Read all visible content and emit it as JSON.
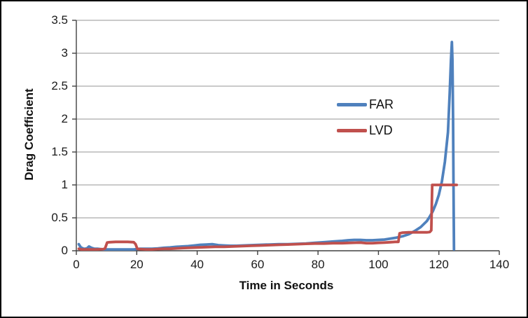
{
  "figure": {
    "background": "#ffffff",
    "border_color": "#000000"
  },
  "chart_data": {
    "type": "line",
    "title": "",
    "xlabel": "Time in Seconds",
    "ylabel": "Drag Coefficient",
    "xlim": [
      0,
      140
    ],
    "ylim": [
      0,
      3.5
    ],
    "xticks": [
      0,
      20,
      40,
      60,
      80,
      100,
      120,
      140
    ],
    "xtick_labels": [
      "0",
      "20",
      "40",
      "60",
      "80",
      "100",
      "120",
      "140"
    ],
    "yticks": [
      0,
      0.5,
      1,
      1.5,
      2,
      2.5,
      3,
      3.5
    ],
    "ytick_labels": [
      "0",
      "0.5",
      "1",
      "1.5",
      "2",
      "2.5",
      "3",
      "3.5"
    ],
    "grid": "horizontal-major",
    "gridline_color": "#969696",
    "axis_color": "#404040",
    "legend": {
      "position": "center-right-overlay-transparent",
      "entries": [
        {
          "label": "FAR",
          "color": "#4F81BD"
        },
        {
          "label": "LVD",
          "color": "#C0504D"
        }
      ]
    },
    "series": [
      {
        "name": "FAR",
        "color": "#4F81BD",
        "points": [
          [
            0.8,
            0.1
          ],
          [
            1.5,
            0.05
          ],
          [
            2.5,
            0.03
          ],
          [
            3.5,
            0.035
          ],
          [
            4.2,
            0.065
          ],
          [
            5,
            0.045
          ],
          [
            6,
            0.03
          ],
          [
            7,
            0.03
          ],
          [
            8,
            0.025
          ],
          [
            9,
            0.02
          ],
          [
            11,
            0.02
          ],
          [
            13,
            0.02
          ],
          [
            15,
            0.02
          ],
          [
            17,
            0.02
          ],
          [
            19,
            0.02
          ],
          [
            21,
            0.03
          ],
          [
            23,
            0.03
          ],
          [
            25,
            0.03
          ],
          [
            27,
            0.035
          ],
          [
            29,
            0.045
          ],
          [
            31,
            0.05
          ],
          [
            33,
            0.06
          ],
          [
            35,
            0.065
          ],
          [
            37,
            0.07
          ],
          [
            39,
            0.08
          ],
          [
            41,
            0.09
          ],
          [
            43,
            0.095
          ],
          [
            45,
            0.1
          ],
          [
            47,
            0.085
          ],
          [
            49,
            0.08
          ],
          [
            51,
            0.075
          ],
          [
            53,
            0.075
          ],
          [
            55,
            0.08
          ],
          [
            58,
            0.085
          ],
          [
            61,
            0.09
          ],
          [
            64,
            0.095
          ],
          [
            67,
            0.1
          ],
          [
            70,
            0.1
          ],
          [
            73,
            0.105
          ],
          [
            76,
            0.11
          ],
          [
            79,
            0.12
          ],
          [
            82,
            0.13
          ],
          [
            85,
            0.14
          ],
          [
            88,
            0.15
          ],
          [
            90,
            0.16
          ],
          [
            92,
            0.165
          ],
          [
            94,
            0.165
          ],
          [
            96,
            0.16
          ],
          [
            98,
            0.16
          ],
          [
            100,
            0.165
          ],
          [
            102,
            0.17
          ],
          [
            104,
            0.185
          ],
          [
            106,
            0.2
          ],
          [
            108,
            0.22
          ],
          [
            110,
            0.25
          ],
          [
            112,
            0.3
          ],
          [
            114,
            0.36
          ],
          [
            116,
            0.45
          ],
          [
            117,
            0.52
          ],
          [
            118,
            0.6
          ],
          [
            119,
            0.71
          ],
          [
            120,
            0.85
          ],
          [
            121,
            1.05
          ],
          [
            122,
            1.35
          ],
          [
            123,
            1.8
          ],
          [
            123.6,
            2.4
          ],
          [
            124,
            2.9
          ],
          [
            124.3,
            3.17
          ],
          [
            124.5,
            2.9
          ],
          [
            124.7,
            2.0
          ],
          [
            124.85,
            1.0
          ],
          [
            125,
            0.02
          ]
        ]
      },
      {
        "name": "LVD",
        "color": "#C0504D",
        "points": [
          [
            0.8,
            0.03
          ],
          [
            1.5,
            0.02
          ],
          [
            3,
            0.02
          ],
          [
            5,
            0.02
          ],
          [
            7,
            0.02
          ],
          [
            9,
            0.025
          ],
          [
            9.5,
            0.035
          ],
          [
            10.2,
            0.125
          ],
          [
            11,
            0.13
          ],
          [
            13,
            0.135
          ],
          [
            15,
            0.135
          ],
          [
            17,
            0.135
          ],
          [
            19,
            0.13
          ],
          [
            19.6,
            0.1
          ],
          [
            20.2,
            0.03
          ],
          [
            21,
            0.025
          ],
          [
            23,
            0.02
          ],
          [
            25,
            0.02
          ],
          [
            27,
            0.025
          ],
          [
            29,
            0.03
          ],
          [
            31,
            0.03
          ],
          [
            33,
            0.035
          ],
          [
            35,
            0.04
          ],
          [
            37,
            0.045
          ],
          [
            40,
            0.05
          ],
          [
            43,
            0.055
          ],
          [
            46,
            0.06
          ],
          [
            49,
            0.06
          ],
          [
            52,
            0.065
          ],
          [
            55,
            0.07
          ],
          [
            58,
            0.075
          ],
          [
            61,
            0.08
          ],
          [
            64,
            0.085
          ],
          [
            67,
            0.09
          ],
          [
            70,
            0.095
          ],
          [
            73,
            0.1
          ],
          [
            76,
            0.105
          ],
          [
            79,
            0.11
          ],
          [
            82,
            0.11
          ],
          [
            85,
            0.115
          ],
          [
            88,
            0.115
          ],
          [
            91,
            0.12
          ],
          [
            94,
            0.125
          ],
          [
            96,
            0.115
          ],
          [
            98,
            0.115
          ],
          [
            100,
            0.12
          ],
          [
            102,
            0.125
          ],
          [
            104,
            0.13
          ],
          [
            105.5,
            0.135
          ],
          [
            106.6,
            0.135
          ],
          [
            107,
            0.265
          ],
          [
            108,
            0.275
          ],
          [
            110,
            0.28
          ],
          [
            112,
            0.28
          ],
          [
            114,
            0.28
          ],
          [
            116,
            0.28
          ],
          [
            117,
            0.285
          ],
          [
            117.5,
            0.31
          ],
          [
            117.8,
            1.0
          ],
          [
            119,
            1.0
          ],
          [
            121,
            1.0
          ],
          [
            123,
            1.0
          ],
          [
            125,
            1.0
          ],
          [
            125.9,
            1.0
          ]
        ]
      }
    ]
  }
}
